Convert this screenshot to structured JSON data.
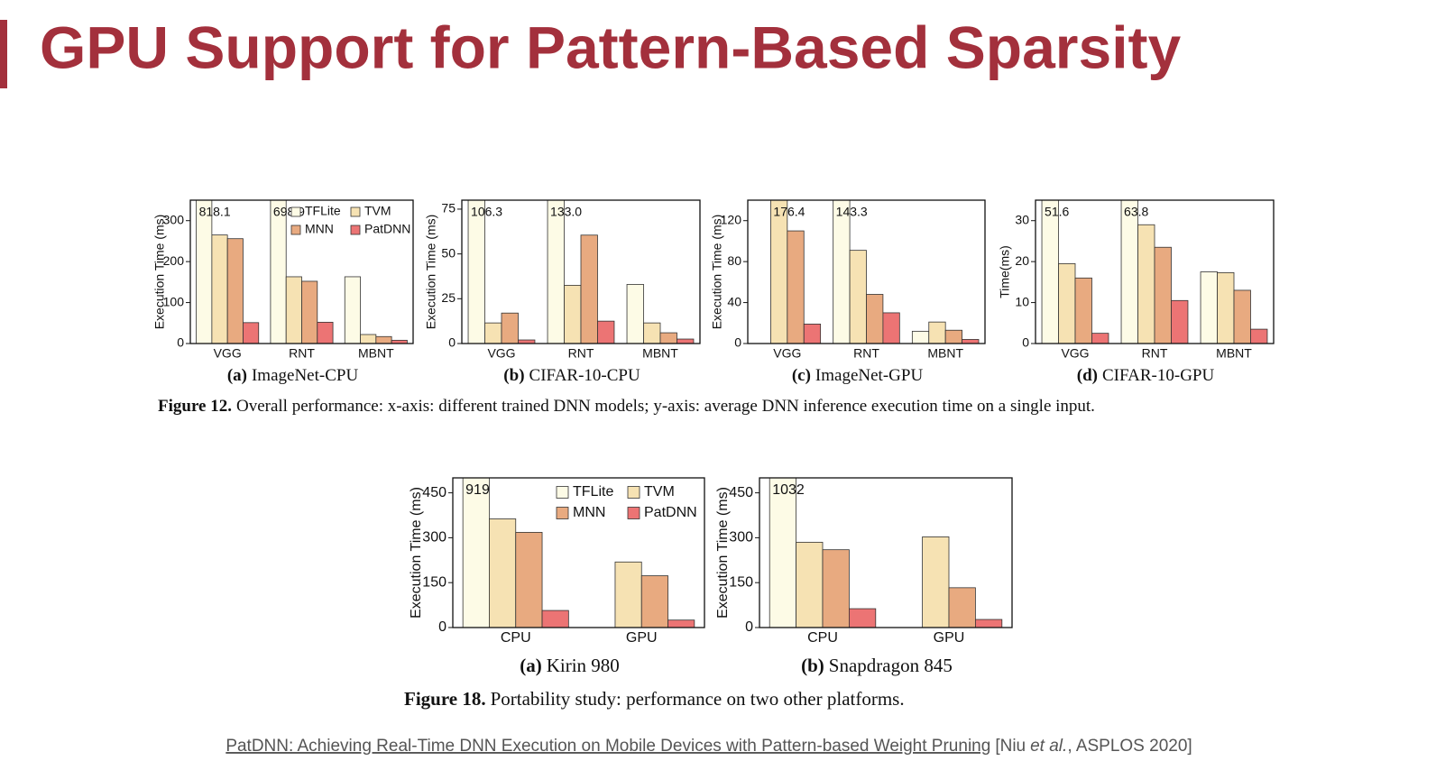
{
  "slide": {
    "title": "GPU Support for Pattern-Based Sparsity"
  },
  "figure12": {
    "label": "Figure 12.",
    "text": "Overall performance: x-axis: different trained DNN models; y-axis: average DNN inference execution time on a single input."
  },
  "figure18": {
    "label": "Figure 18.",
    "text": "Portability study: performance on two other platforms."
  },
  "citation": {
    "link": "PatDNN: Achieving Real-Time DNN Execution on Mobile Devices with Pattern-based Weight Pruning",
    "pre": "[Niu",
    "italic": "et al.",
    "post": ", ASPLOS 2020]"
  },
  "chart_data": [
    {
      "type": "bar",
      "caption_label": "(a)",
      "caption": "ImageNet-CPU",
      "ylabel": "Execution Time (ms)",
      "categories": [
        "VGG",
        "RNT",
        "MBNT"
      ],
      "ylim": [
        0,
        350
      ],
      "yticks": [
        0,
        100,
        200,
        300
      ],
      "legend": true,
      "series": [
        {
          "name": "TFLite",
          "color": "#fdfbe6",
          "values": [
            818.1,
            698.9,
            163
          ],
          "value_labels": [
            "818.1",
            "698.9",
            null
          ]
        },
        {
          "name": "TVM",
          "color": "#f6e2b3",
          "values": [
            265,
            163,
            22
          ]
        },
        {
          "name": "MNN",
          "color": "#e8aa80",
          "values": [
            256,
            152,
            17
          ]
        },
        {
          "name": "PatDNN",
          "color": "#ec7474",
          "values": [
            51,
            52,
            8
          ]
        }
      ]
    },
    {
      "type": "bar",
      "caption_label": "(b)",
      "caption": "CIFAR-10-CPU",
      "ylabel": "Execution Time (ms)",
      "categories": [
        "VGG",
        "RNT",
        "MBNT"
      ],
      "ylim": [
        0,
        80
      ],
      "yticks": [
        0,
        25,
        50,
        75
      ],
      "legend": false,
      "series": [
        {
          "name": "TFLite",
          "color": "#fdfbe6",
          "values": [
            106.3,
            133.0,
            33
          ],
          "value_labels": [
            "106.3",
            "133.0",
            null
          ]
        },
        {
          "name": "TVM",
          "color": "#f6e2b3",
          "values": [
            11.5,
            32.5,
            11.5
          ]
        },
        {
          "name": "MNN",
          "color": "#e8aa80",
          "values": [
            17,
            60.5,
            6
          ]
        },
        {
          "name": "PatDNN",
          "color": "#ec7474",
          "values": [
            2,
            12.5,
            2.5
          ]
        }
      ]
    },
    {
      "type": "bar",
      "caption_label": "(c)",
      "caption": "ImageNet-GPU",
      "ylabel": "Execution Time (ms)",
      "categories": [
        "VGG",
        "RNT",
        "MBNT"
      ],
      "ylim": [
        0,
        140
      ],
      "yticks": [
        0,
        40,
        80,
        120
      ],
      "legend": false,
      "series": [
        {
          "name": "TFLite",
          "color": "#fdfbe6",
          "values": [
            null,
            143.3,
            12
          ],
          "value_labels": [
            null,
            "143.3",
            null
          ]
        },
        {
          "name": "TVM",
          "color": "#f6e2b3",
          "values": [
            176.4,
            91,
            21
          ],
          "value_labels": [
            "176.4",
            null,
            null
          ]
        },
        {
          "name": "MNN",
          "color": "#e8aa80",
          "values": [
            110,
            48,
            13
          ]
        },
        {
          "name": "PatDNN",
          "color": "#ec7474",
          "values": [
            19,
            30,
            4
          ]
        }
      ]
    },
    {
      "type": "bar",
      "caption_label": "(d)",
      "caption": "CIFAR-10-GPU",
      "ylabel": "Time(ms)",
      "categories": [
        "VGG",
        "RNT",
        "MBNT"
      ],
      "ylim": [
        0,
        35
      ],
      "yticks": [
        0,
        10,
        20,
        30
      ],
      "legend": false,
      "series": [
        {
          "name": "TFLite",
          "color": "#fdfbe6",
          "values": [
            51.6,
            63.8,
            17.5
          ],
          "value_labels": [
            "51.6",
            "63.8",
            null
          ]
        },
        {
          "name": "TVM",
          "color": "#f6e2b3",
          "values": [
            19.5,
            29,
            17.3
          ]
        },
        {
          "name": "MNN",
          "color": "#e8aa80",
          "values": [
            16,
            23.5,
            13
          ]
        },
        {
          "name": "PatDNN",
          "color": "#ec7474",
          "values": [
            2.5,
            10.5,
            3.5
          ]
        }
      ]
    },
    {
      "type": "bar",
      "caption_label": "(a)",
      "caption": "Kirin 980",
      "ylabel": "Execution Time (ms)",
      "categories": [
        "CPU",
        "GPU"
      ],
      "ylim": [
        0,
        500
      ],
      "yticks": [
        0,
        150,
        300,
        450
      ],
      "legend": true,
      "series": [
        {
          "name": "TFLite",
          "color": "#fdfbe6",
          "values": [
            919,
            null
          ],
          "value_labels": [
            "919",
            null
          ]
        },
        {
          "name": "TVM",
          "color": "#f6e2b3",
          "values": [
            363,
            219
          ]
        },
        {
          "name": "MNN",
          "color": "#e8aa80",
          "values": [
            318,
            173
          ]
        },
        {
          "name": "PatDNN",
          "color": "#ec7474",
          "values": [
            57,
            25
          ]
        }
      ]
    },
    {
      "type": "bar",
      "caption_label": "(b)",
      "caption": "Snapdragon 845",
      "ylabel": "Execution Time (ms)",
      "categories": [
        "CPU",
        "GPU"
      ],
      "ylim": [
        0,
        500
      ],
      "yticks": [
        0,
        150,
        300,
        450
      ],
      "legend": false,
      "series": [
        {
          "name": "TFLite",
          "color": "#fdfbe6",
          "values": [
            1032,
            null
          ],
          "value_labels": [
            "1032",
            null
          ]
        },
        {
          "name": "TVM",
          "color": "#f6e2b3",
          "values": [
            285,
            303
          ]
        },
        {
          "name": "MNN",
          "color": "#e8aa80",
          "values": [
            260,
            133
          ]
        },
        {
          "name": "PatDNN",
          "color": "#ec7474",
          "values": [
            63,
            27
          ]
        }
      ]
    }
  ]
}
